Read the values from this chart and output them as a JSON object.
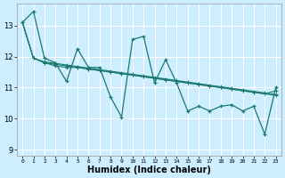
{
  "background_color": "#cceeff",
  "grid_color": "#ffffff",
  "line_color": "#1a7a6e",
  "xlabel": "Humidex (Indice chaleur)",
  "ylim": [
    8.8,
    13.7
  ],
  "xlim": [
    -0.5,
    23.5
  ],
  "yticks": [
    9,
    10,
    11,
    12,
    13
  ],
  "xticks": [
    0,
    1,
    2,
    3,
    4,
    5,
    6,
    7,
    8,
    9,
    10,
    11,
    12,
    13,
    14,
    15,
    16,
    17,
    18,
    19,
    20,
    21,
    22,
    23
  ],
  "series": [
    [
      13.1,
      13.45,
      11.95,
      11.8,
      11.2,
      12.25,
      11.65,
      11.65,
      10.7,
      10.05,
      12.55,
      12.65,
      11.15,
      11.9,
      11.15,
      10.25,
      10.4,
      10.25,
      10.4,
      10.45,
      10.25,
      10.4,
      9.5,
      11.0
    ],
    [
      13.1,
      11.95,
      11.8,
      11.7,
      11.65,
      11.65,
      11.6,
      11.55,
      11.5,
      11.45,
      11.4,
      11.35,
      11.3,
      11.25,
      11.2,
      11.15,
      11.1,
      11.05,
      11.0,
      10.95,
      10.9,
      10.85,
      10.8,
      10.9
    ],
    [
      13.1,
      11.95,
      11.8,
      11.75,
      11.7,
      11.65,
      11.6,
      11.55,
      11.5,
      11.45,
      11.4,
      11.35,
      11.3,
      11.25,
      11.2,
      11.15,
      11.1,
      11.05,
      11.0,
      10.95,
      10.9,
      10.85,
      10.8,
      10.75
    ],
    [
      13.1,
      11.95,
      11.83,
      11.78,
      11.73,
      11.68,
      11.63,
      11.58,
      11.53,
      11.48,
      11.43,
      11.38,
      11.33,
      11.28,
      11.23,
      11.18,
      11.13,
      11.08,
      11.03,
      10.98,
      10.93,
      10.88,
      10.83,
      10.78
    ]
  ]
}
